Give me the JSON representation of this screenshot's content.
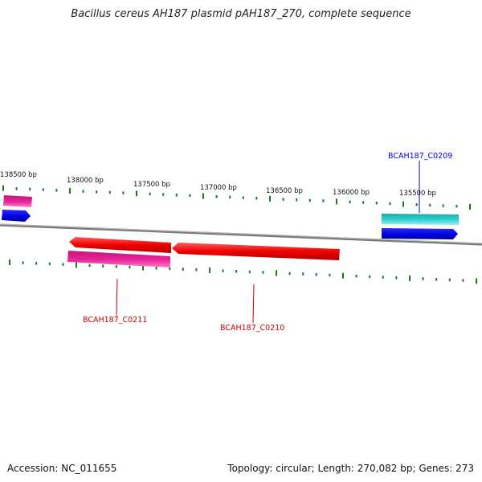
{
  "header": {
    "title": "Bacillus cereus AH187 plasmid pAH187_270, complete sequence"
  },
  "footer": {
    "accession": "Accession: NC_011655",
    "summary": "Topology: circular; Length: 270,082 bp; Genes: 273"
  },
  "map": {
    "scale_labels": [
      "138500 bp",
      "138000 bp",
      "137500 bp",
      "137000 bp",
      "136500 bp",
      "136000 bp",
      "135500 bp"
    ],
    "colors": {
      "backbone": "#888888",
      "ticks": "#1a7a1a",
      "red": "#ff0000",
      "magenta": "#e8249a",
      "blue": "#0000ee",
      "cyan": "#22c2c2",
      "label_red": "#cc0000",
      "label_blue": "#0000cc"
    },
    "features": [
      {
        "name": "feature-magenta-left",
        "color": "magenta",
        "strand": "plus"
      },
      {
        "name": "feature-blue-left",
        "color": "blue",
        "strand": "plus"
      },
      {
        "name": "feature-cyan-right",
        "color": "cyan",
        "strand": "plus"
      },
      {
        "name": "feature-blue-right",
        "color": "blue",
        "strand": "plus"
      },
      {
        "name": "feature-red-C0211",
        "color": "red",
        "strand": "minus"
      },
      {
        "name": "feature-magenta-C0211",
        "color": "magenta",
        "strand": "minus"
      },
      {
        "name": "feature-red-C0210",
        "color": "red",
        "strand": "minus"
      }
    ],
    "gene_labels": [
      {
        "text": "BCAH187_C0209",
        "color": "label_blue"
      },
      {
        "text": "BCAH187_C0211",
        "color": "label_red"
      },
      {
        "text": "BCAH187_C0210",
        "color": "label_red"
      }
    ]
  }
}
